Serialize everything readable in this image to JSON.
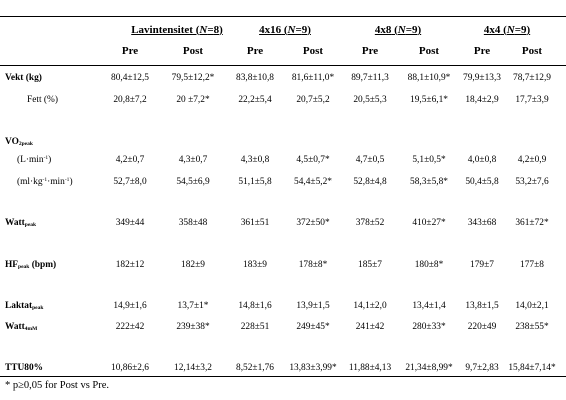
{
  "groups": [
    {
      "name": "Lavintensitet",
      "n_label": "N",
      "n": "8"
    },
    {
      "name": "4x16",
      "n_label": "N",
      "n": "9"
    },
    {
      "name": "4x8",
      "n_label": "N",
      "n": "9"
    },
    {
      "name": "4x4",
      "n_label": "N",
      "n": "9"
    }
  ],
  "columns": [
    "Pre",
    "Post",
    "Pre",
    "Post",
    "Pre",
    "Post",
    "Pre",
    "Post"
  ],
  "labels": {
    "vekt": "Vekt (kg)",
    "fett": "Fett (%)",
    "vo2_main": "VO",
    "vo2_sub": "2peak",
    "lmin_a": "(L·min",
    "lmin_sup": "-1",
    "lmin_b": ")",
    "mlkg_a": "(ml·kg",
    "mlkg_sup1": "-1",
    "mlkg_b": "·min",
    "mlkg_sup2": "-1",
    "mlkg_c": ")",
    "watt_main": "Watt",
    "watt_sub": "peak",
    "hf_main": "HF",
    "hf_sub": "peak",
    "hf_unit": " (bpm)",
    "laktat_main": "Laktat",
    "laktat_sub": "peak",
    "watt4_main": "Watt",
    "watt4_sub": "4mM",
    "ttu": "TTU80%"
  },
  "rows": {
    "vekt": [
      "80,4±12,5",
      "79,5±12,2*",
      "83,8±10,8",
      "81,6±11,0*",
      "89,7±11,3",
      "88,1±10,9*",
      "79,9±13,3",
      "78,7±12,9"
    ],
    "fett": [
      "20,8±7,2",
      "20 ±7,2*",
      "22,2±5,4",
      "20,7±5,2",
      "20,5±5,3",
      "19,5±6,1*",
      "18,4±2,9",
      "17,7±3,9"
    ],
    "lmin": [
      "4,2±0,7",
      "4,3±0,7",
      "4,3±0,8",
      "4,5±0,7*",
      "4,7±0,5",
      "5,1±0,5*",
      "4,0±0,8",
      "4,2±0,9"
    ],
    "mlkg": [
      "52,7±8,0",
      "54,5±6,9",
      "51,1±5,8",
      "54,4±5,2*",
      "52,8±4,8",
      "58,3±5,8*",
      "50,4±5,8",
      "53,2±7,6"
    ],
    "watt": [
      "349±44",
      "358±48",
      "361±51",
      "372±50*",
      "378±52",
      "410±27*",
      "343±68",
      "361±72*"
    ],
    "hf": [
      "182±12",
      "182±9",
      "183±9",
      "178±8*",
      "185±7",
      "180±8*",
      "179±7",
      "177±8"
    ],
    "laktat": [
      "14,9±1,6",
      "13,7±1*",
      "14,8±1,6",
      "13,9±1,5",
      "14,1±2,0",
      "13,4±1,4",
      "13,8±1,5",
      "14,0±2,1"
    ],
    "watt4": [
      "222±42",
      "239±38*",
      "228±51",
      "249±45*",
      "241±42",
      "280±33*",
      "220±49",
      "238±55*"
    ],
    "ttu": [
      "10,86±2,6",
      "12,14±3,2",
      "8,52±1,76",
      "13,83±3,99*",
      "11,88±4,13",
      "21,34±8,99*",
      "9,7±2,83",
      "15,84±7,14*"
    ]
  },
  "footnote": "* p≥0,05 for Post vs Pre."
}
